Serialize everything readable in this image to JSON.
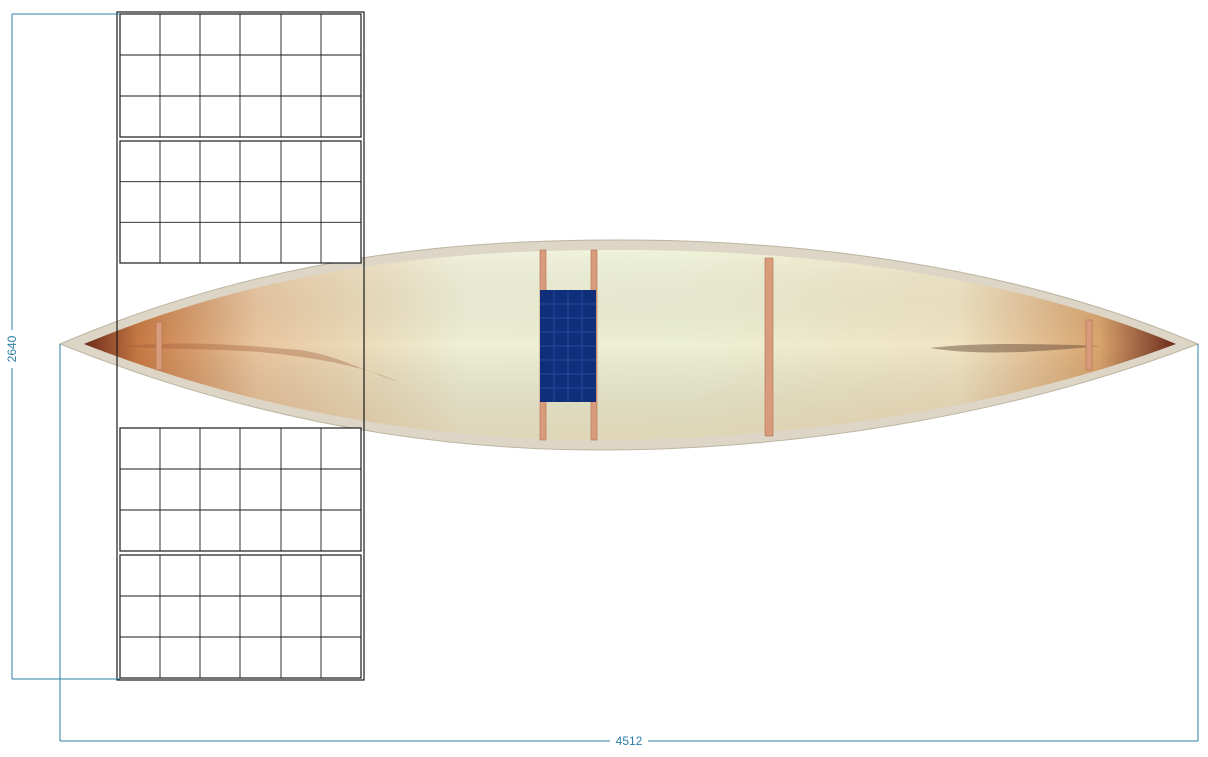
{
  "colors": {
    "dimension_line": "#2e7fa8",
    "grid_line": "#1a1a1a",
    "hull_rim": "#ddd6c6",
    "hull_inner_light": "#eef0d8",
    "hull_inner_warm": "#d9a56b",
    "hull_end_dark": "#6b2a1a",
    "thwart_wood": "#d89b7c",
    "seat_blue": "#0f2f7a"
  },
  "dimensions": {
    "height_label": "2640",
    "length_label": "4512"
  },
  "panels": {
    "upper_count": 2,
    "lower_count": 2,
    "columns": 6,
    "rows_per_panel": 3
  }
}
